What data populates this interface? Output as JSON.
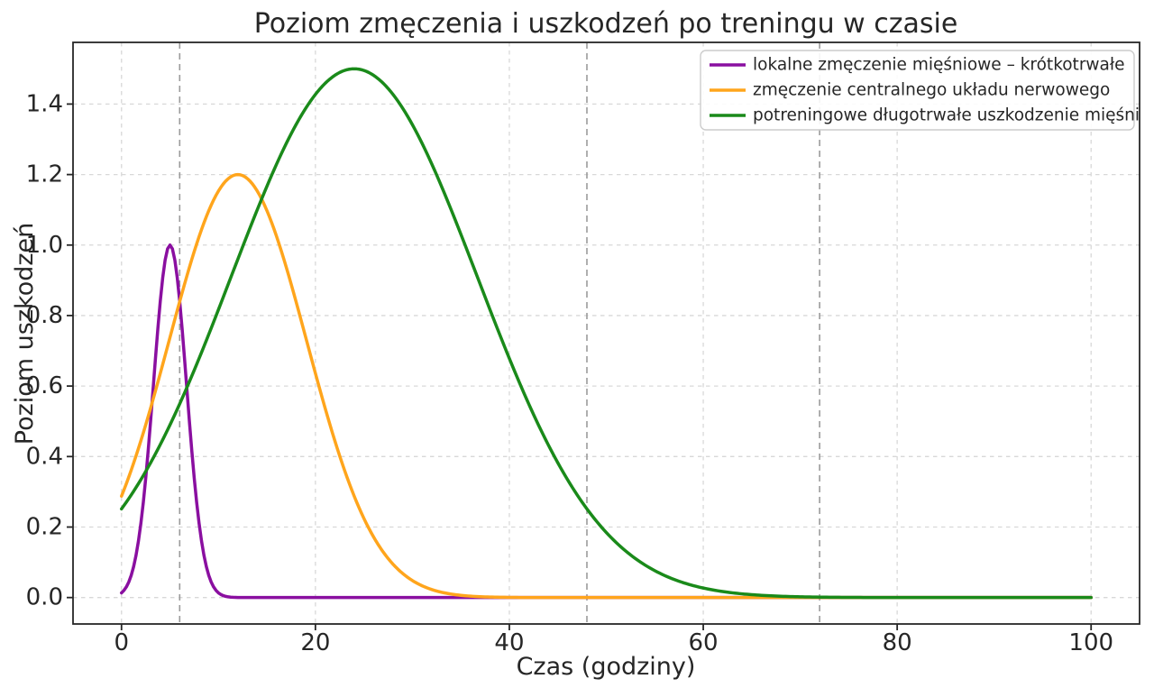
{
  "chart_data": {
    "type": "line",
    "title": "Poziom zmęczenia i uszkodzeń po treningu w czasie",
    "xlabel": "Czas (godziny)",
    "ylabel": "Poziom uszkodzeń",
    "xlim": [
      -5,
      105
    ],
    "ylim": [
      -0.075,
      1.575
    ],
    "x_ticks": [
      0,
      20,
      40,
      60,
      80,
      100
    ],
    "y_ticks": [
      0.0,
      0.2,
      0.4,
      0.6,
      0.8,
      1.0,
      1.2,
      1.4
    ],
    "grid": true,
    "grid_style": "dashed",
    "legend_position": "upper right",
    "background_color": "#ffffff",
    "text_color": "#262626",
    "grid_color": "#d8d8d8",
    "spine_color": "#262626",
    "event_lines": {
      "x": [
        6,
        48,
        72
      ],
      "style": "dashed",
      "color": "#9b9b9b"
    },
    "sample_x_hours": [
      0,
      2,
      4,
      6,
      8,
      10,
      12,
      14,
      16,
      18,
      20,
      22,
      24,
      26,
      28,
      30,
      32,
      34,
      36,
      38,
      40,
      42,
      44,
      46,
      48,
      50,
      52,
      54,
      56,
      58,
      60,
      62,
      64,
      66,
      68,
      70,
      72,
      74,
      76,
      78,
      80,
      82,
      84,
      86,
      88,
      90,
      92,
      94,
      96,
      98,
      100
    ],
    "series": [
      {
        "name": "lokalne zmęczenie mięśniowe – krótkotrwałe",
        "color": "#8a0fa0",
        "model": {
          "type": "gaussian",
          "amplitude": 1.0,
          "mu": 5,
          "sigma": 1.7
        },
        "peak": {
          "x": 5,
          "y": 1.0
        },
        "y": [
          0.013,
          0.211,
          0.841,
          0.841,
          0.211,
          0.013,
          0,
          0,
          0,
          0,
          0,
          0,
          0,
          0,
          0,
          0,
          0,
          0,
          0,
          0,
          0,
          0,
          0,
          0,
          0,
          0,
          0,
          0,
          0,
          0,
          0,
          0,
          0,
          0,
          0,
          0,
          0,
          0,
          0,
          0,
          0,
          0,
          0,
          0,
          0,
          0,
          0,
          0,
          0,
          0,
          0
        ]
      },
      {
        "name": "zmęczenie centralnego układu nerwowego",
        "color": "#ffa51c",
        "model": {
          "type": "gaussian",
          "amplitude": 1.2,
          "mu": 12,
          "sigma": 7.1
        },
        "peak": {
          "x": 12,
          "y": 1.2
        },
        "y": [
          0.288,
          0.445,
          0.636,
          0.84,
          1.024,
          1.153,
          1.2,
          1.153,
          1.024,
          0.84,
          0.636,
          0.445,
          0.288,
          0.172,
          0.095,
          0.048,
          0.023,
          0.01,
          0.004,
          0.002,
          0.001,
          0,
          0,
          0,
          0,
          0,
          0,
          0,
          0,
          0,
          0,
          0,
          0,
          0,
          0,
          0,
          0,
          0,
          0,
          0,
          0,
          0,
          0,
          0,
          0,
          0,
          0,
          0,
          0,
          0,
          0
        ]
      },
      {
        "name": "potreningowe długotrwałe uszkodzenie mięśni",
        "color": "#1a8a1a",
        "model": {
          "type": "gaussian",
          "amplitude": 1.5,
          "mu": 24,
          "sigma": 12.7
        },
        "peak": {
          "x": 24,
          "y": 1.5
        },
        "y": [
          0.252,
          0.335,
          0.434,
          0.549,
          0.678,
          0.817,
          0.96,
          1.1,
          1.23,
          1.342,
          1.427,
          1.482,
          1.5,
          1.482,
          1.427,
          1.342,
          1.23,
          1.1,
          0.96,
          0.817,
          0.678,
          0.549,
          0.434,
          0.335,
          0.252,
          0.184,
          0.132,
          0.092,
          0.063,
          0.042,
          0.027,
          0.017,
          0.01,
          0.006,
          0.004,
          0.002,
          0.001,
          0.001,
          0,
          0,
          0,
          0,
          0,
          0,
          0,
          0,
          0,
          0,
          0,
          0,
          0
        ]
      }
    ]
  }
}
